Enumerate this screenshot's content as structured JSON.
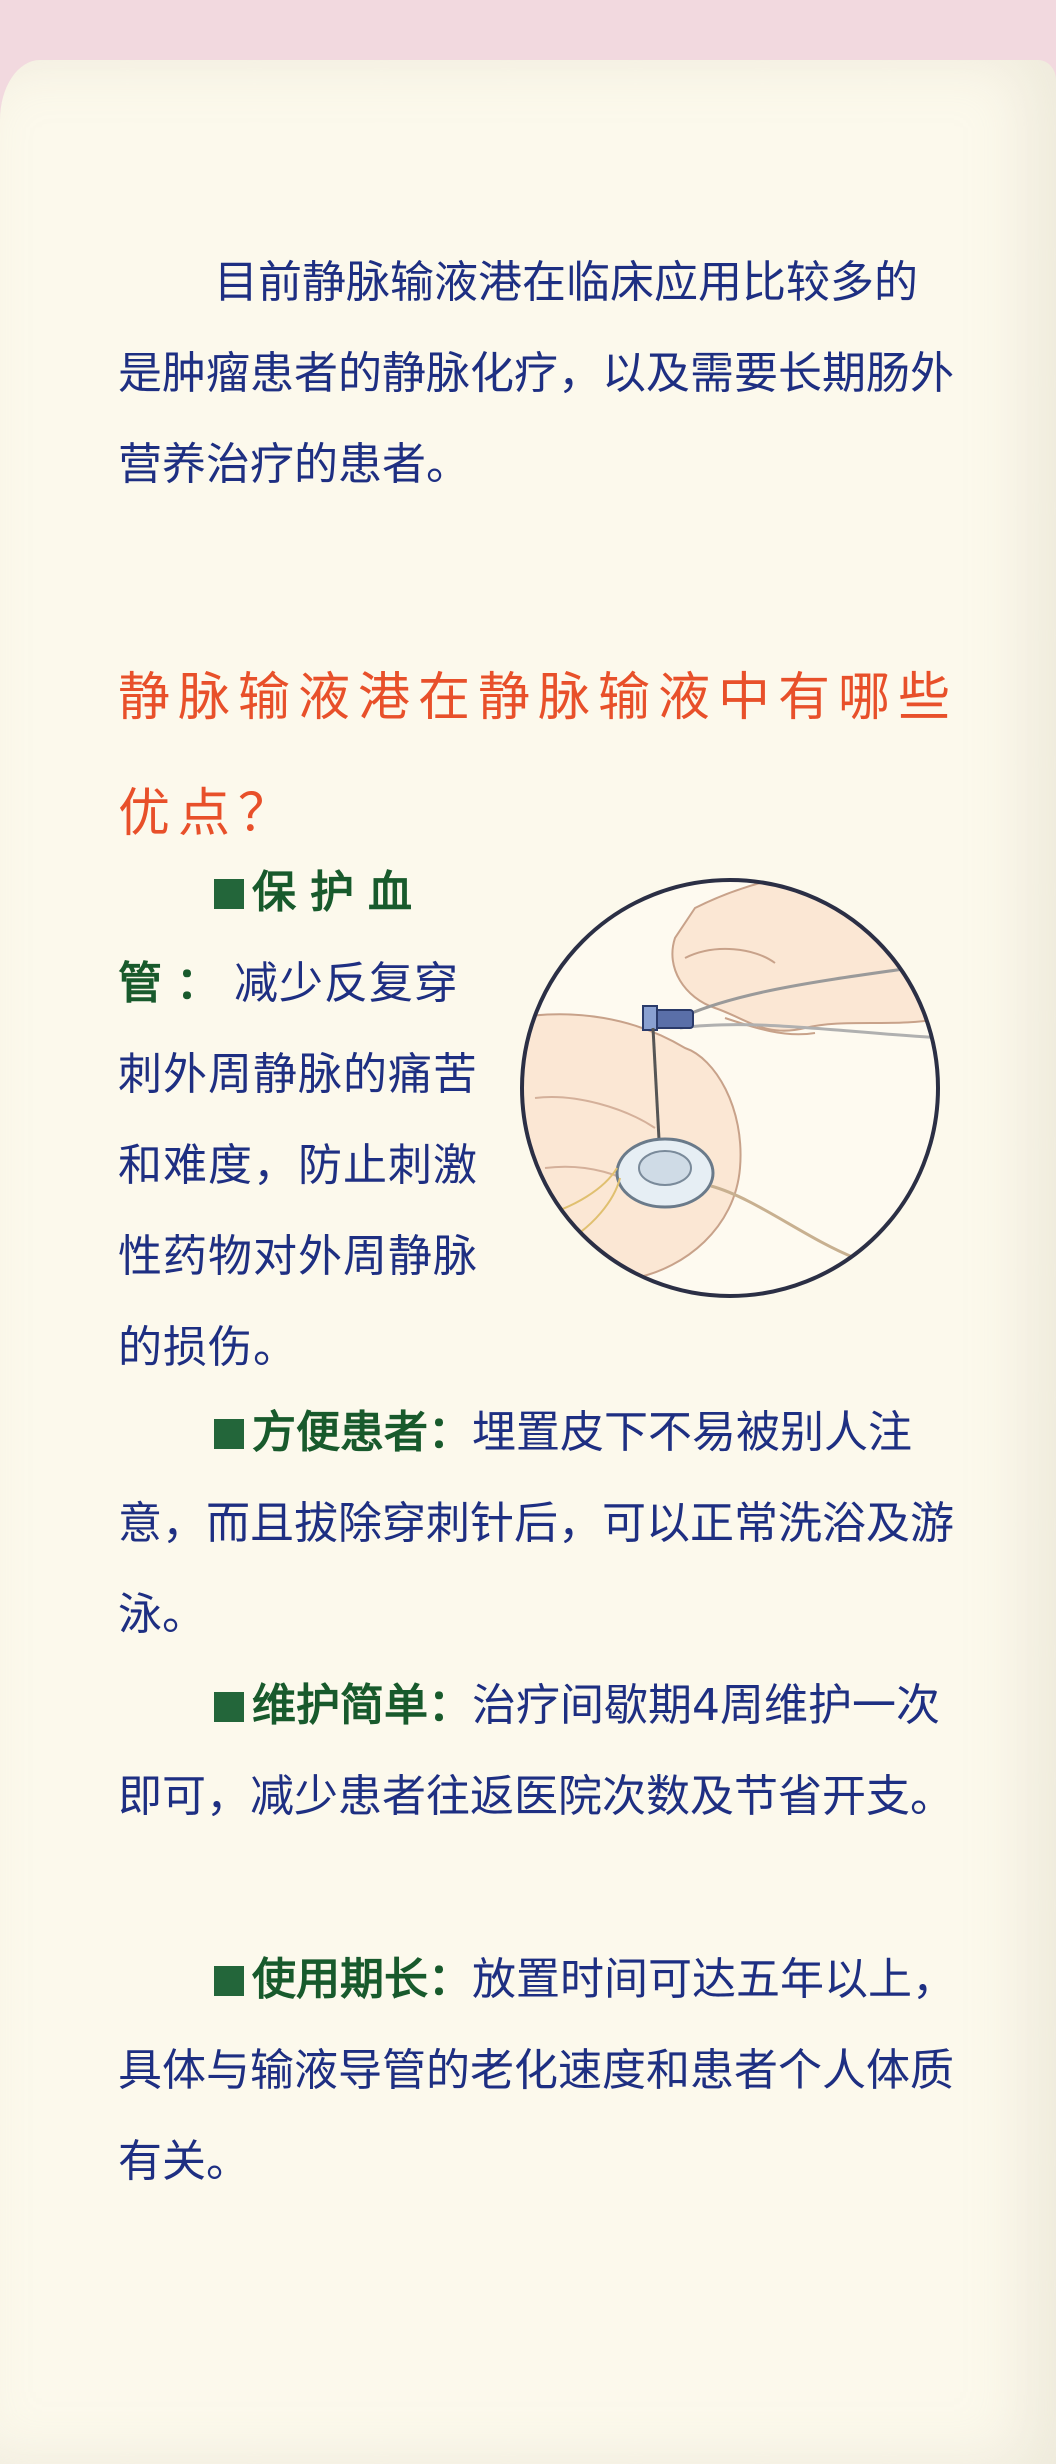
{
  "intro": "目前静脉输液港在临床应用比较多的是肿瘤患者的静脉化疗，以及需要长期肠外营养治疗的患者。",
  "heading": "静脉输液港在静脉输液中有哪些优点？",
  "points": [
    {
      "label": "保护血管",
      "sep": "：",
      "text": "减少反复穿刺外周静脉的痛苦和难度，防止刺激性药物对外周静脉的损伤。"
    },
    {
      "label": "方便患者",
      "sep": "：",
      "text": "埋置皮下不易被别人注意，而且拔除穿刺针后，可以正常洗浴及游泳。"
    },
    {
      "label": "维护简单",
      "sep": "：",
      "text": "治疗间歇期4周维护一次即可，减少患者往返医院次数及节省开支。"
    },
    {
      "label": "使用期长",
      "sep": "：",
      "text": "放置时间可达五年以上，具体与输液导管的老化速度和患者个人体质有关。"
    }
  ],
  "colors": {
    "body_text": "#1e2f82",
    "heading": "#e8502a",
    "label": "#185a2c",
    "bullet": "#23663a",
    "paper": "#fcf9ec"
  },
  "illustration_icon": "hand-needle-port-illustration"
}
